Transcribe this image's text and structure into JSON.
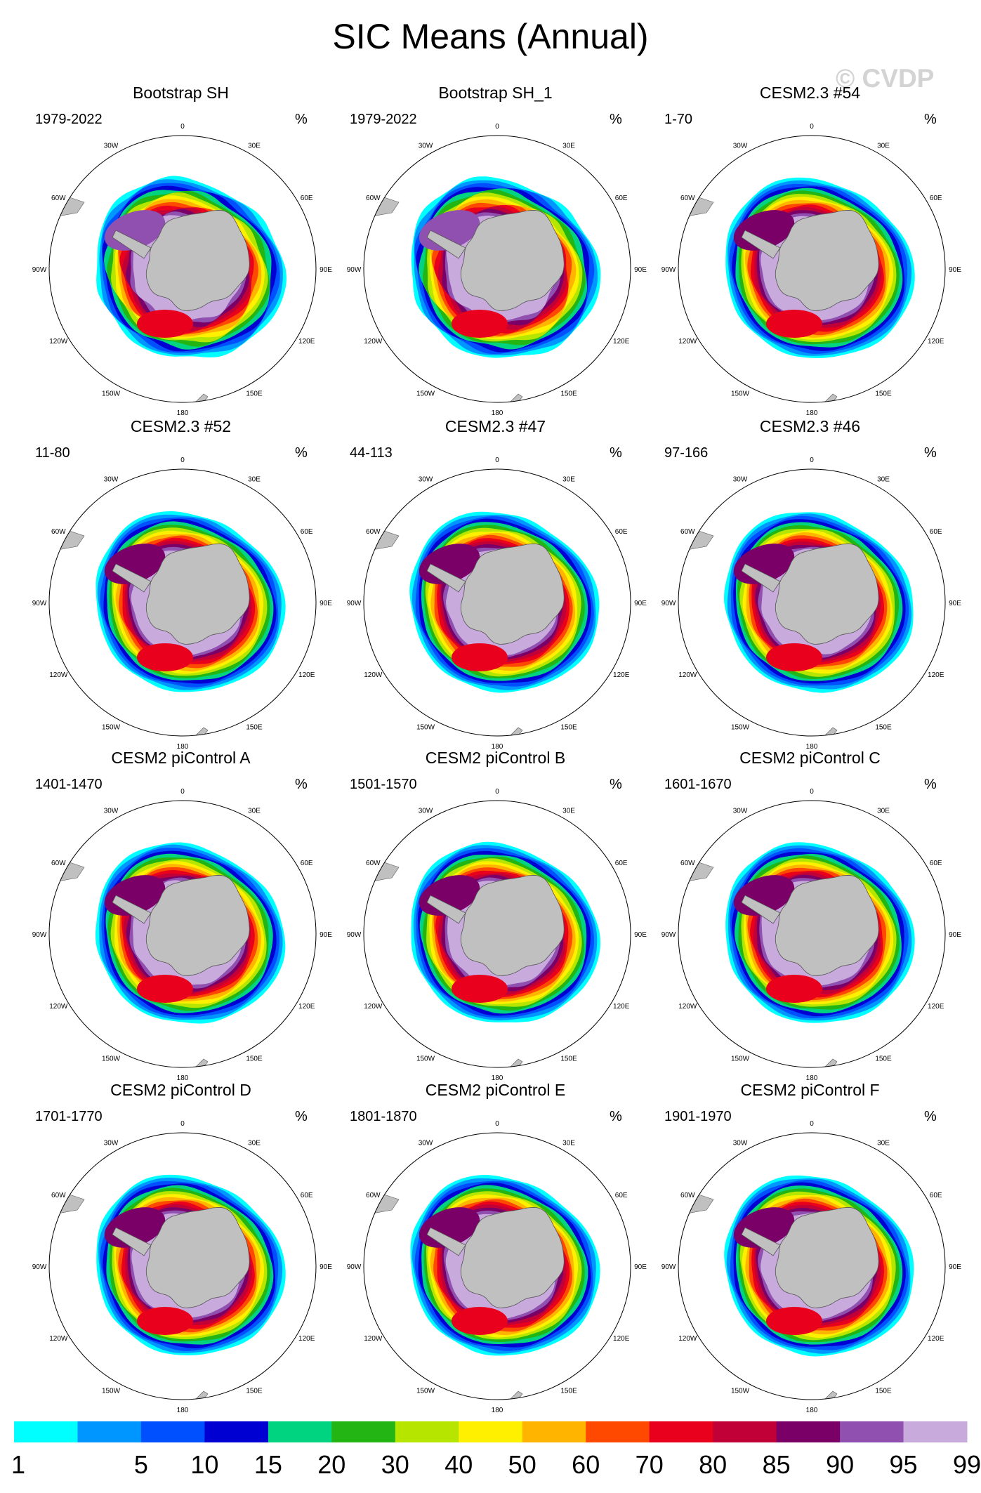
{
  "figure": {
    "title": "SIC Means (Annual)",
    "watermark": "© CVDP"
  },
  "chart_data": {
    "type": "heatmap",
    "projection": "south polar stereographic",
    "variable_units": "%",
    "longitude_labels": [
      "0",
      "30E",
      "60E",
      "90E",
      "120E",
      "150E",
      "180",
      "150W",
      "120W",
      "90W",
      "60W",
      "30W"
    ],
    "colorbar": {
      "levels": [
        "1",
        "5",
        "10",
        "15",
        "20",
        "30",
        "40",
        "50",
        "60",
        "70",
        "80",
        "85",
        "90",
        "95",
        "99"
      ],
      "colors": [
        "#00ffff",
        "#0096ff",
        "#0050ff",
        "#0000d2",
        "#00d480",
        "#22b514",
        "#b6e600",
        "#fff000",
        "#ffb400",
        "#ff4800",
        "#e8001c",
        "#c00036",
        "#7a0068",
        "#9050b0",
        "#c8aadc"
      ]
    },
    "panels": [
      {
        "title": "Bootstrap SH",
        "period": "1979-2022",
        "units": "%"
      },
      {
        "title": "Bootstrap SH_1",
        "period": "1979-2022",
        "units": "%"
      },
      {
        "title": "CESM2.3 #54",
        "period": "1-70",
        "units": "%"
      },
      {
        "title": "CESM2.3 #52",
        "period": "11-80",
        "units": "%"
      },
      {
        "title": "CESM2.3 #47",
        "period": "44-113",
        "units": "%"
      },
      {
        "title": "CESM2.3 #46",
        "period": "97-166",
        "units": "%"
      },
      {
        "title": "CESM2 piControl A",
        "period": "1401-1470",
        "units": "%"
      },
      {
        "title": "CESM2 piControl B",
        "period": "1501-1570",
        "units": "%"
      },
      {
        "title": "CESM2 piControl C",
        "period": "1601-1670",
        "units": "%"
      },
      {
        "title": "CESM2 piControl D",
        "period": "1701-1770",
        "units": "%"
      },
      {
        "title": "CESM2 piControl E",
        "period": "1801-1870",
        "units": "%"
      },
      {
        "title": "CESM2 piControl F",
        "period": "1901-1970",
        "units": "%"
      }
    ]
  }
}
